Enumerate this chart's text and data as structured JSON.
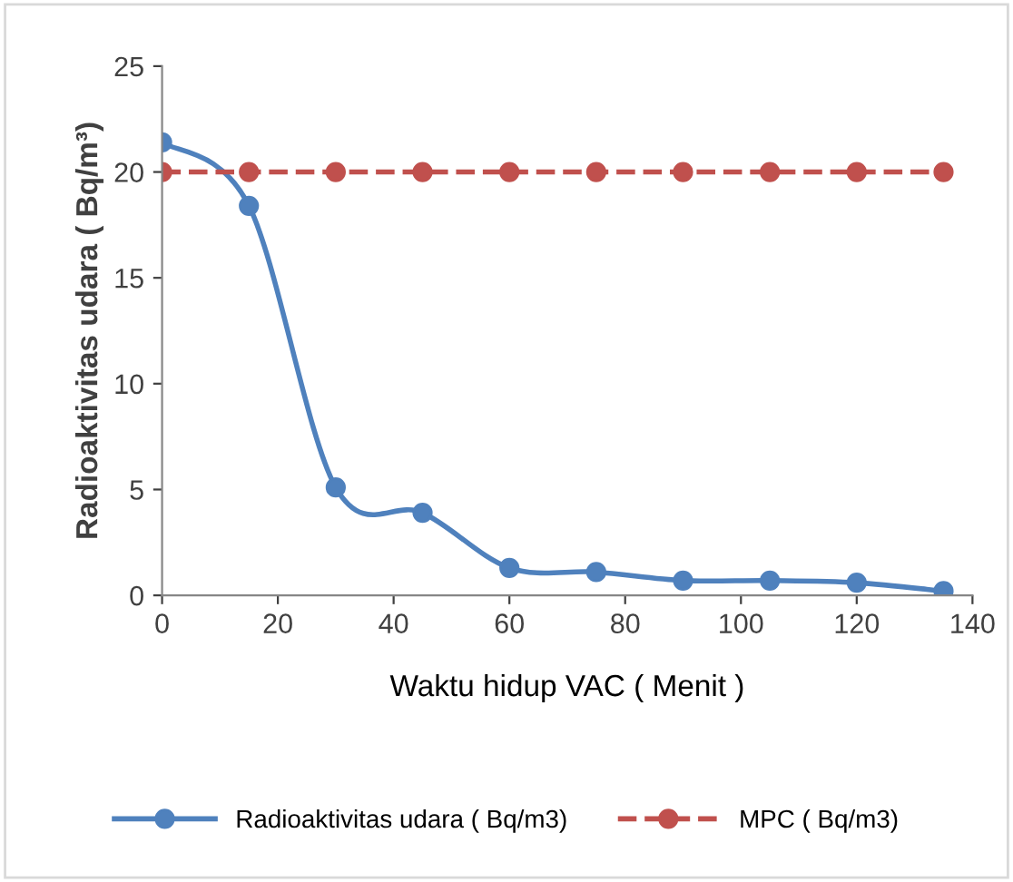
{
  "chart_data": {
    "type": "line",
    "xlabel": "Waktu hidup VAC ( Menit )",
    "ylabel": "Radioaktivitas udara ( Bq/m³)",
    "x": [
      0,
      15,
      30,
      45,
      60,
      75,
      90,
      105,
      120,
      135
    ],
    "series": [
      {
        "name": "Radioaktivitas udara ( Bq/m3)",
        "color": "#4f81bd",
        "values": [
          21.4,
          18.4,
          5.1,
          3.9,
          1.3,
          1.1,
          0.7,
          0.7,
          0.6,
          0.2
        ],
        "line_style": "solid"
      },
      {
        "name": "MPC ( Bq/m3)",
        "color": "#c0504d",
        "values": [
          20,
          20,
          20,
          20,
          20,
          20,
          20,
          20,
          20,
          20
        ],
        "line_style": "dashed"
      }
    ],
    "xlim": [
      0,
      140
    ],
    "xticks": [
      0,
      20,
      40,
      60,
      80,
      100,
      120,
      140
    ],
    "ylim": [
      0,
      25
    ],
    "yticks": [
      0,
      5,
      10,
      15,
      20,
      25
    ],
    "marker": "circle",
    "grid": false,
    "legend": "bottom"
  }
}
